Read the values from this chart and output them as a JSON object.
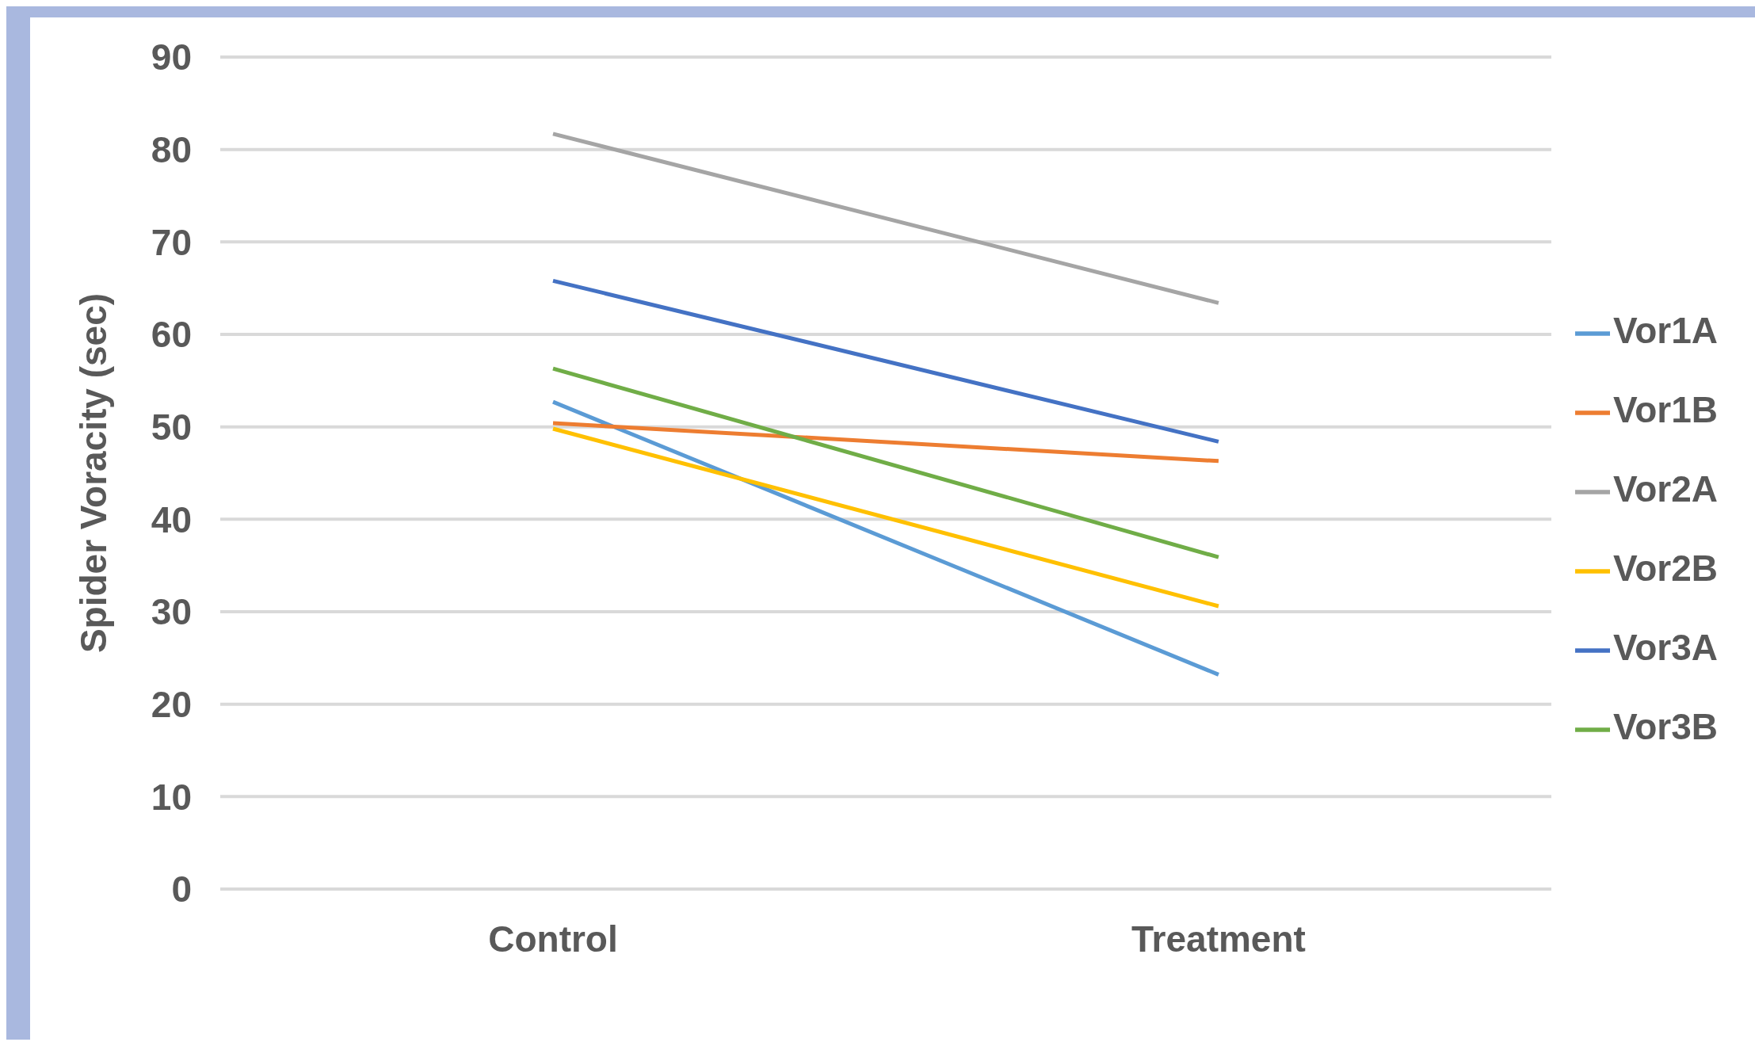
{
  "chart_data": {
    "type": "line",
    "ylabel": "Spider Voracity (sec)",
    "categories": [
      "Control",
      "Treatment"
    ],
    "series": [
      {
        "name": "Vor1A",
        "color": "#5b9bd5",
        "values": [
          52.7,
          23.2
        ]
      },
      {
        "name": "Vor1B",
        "color": "#ed7d31",
        "values": [
          50.4,
          46.3
        ]
      },
      {
        "name": "Vor2A",
        "color": "#a5a5a5",
        "values": [
          81.7,
          63.4
        ]
      },
      {
        "name": "Vor2B",
        "color": "#ffc000",
        "values": [
          49.8,
          30.6
        ]
      },
      {
        "name": "Vor3A",
        "color": "#4472c4",
        "values": [
          65.8,
          48.4
        ]
      },
      {
        "name": "Vor3B",
        "color": "#70ad47",
        "values": [
          56.3,
          35.9
        ]
      }
    ],
    "ylim": [
      0,
      90
    ],
    "yticks": [
      0,
      10,
      20,
      30,
      40,
      50,
      60,
      70,
      80,
      90
    ],
    "grid": "y",
    "legend": "right",
    "marker": "none",
    "line_style": "solid"
  }
}
